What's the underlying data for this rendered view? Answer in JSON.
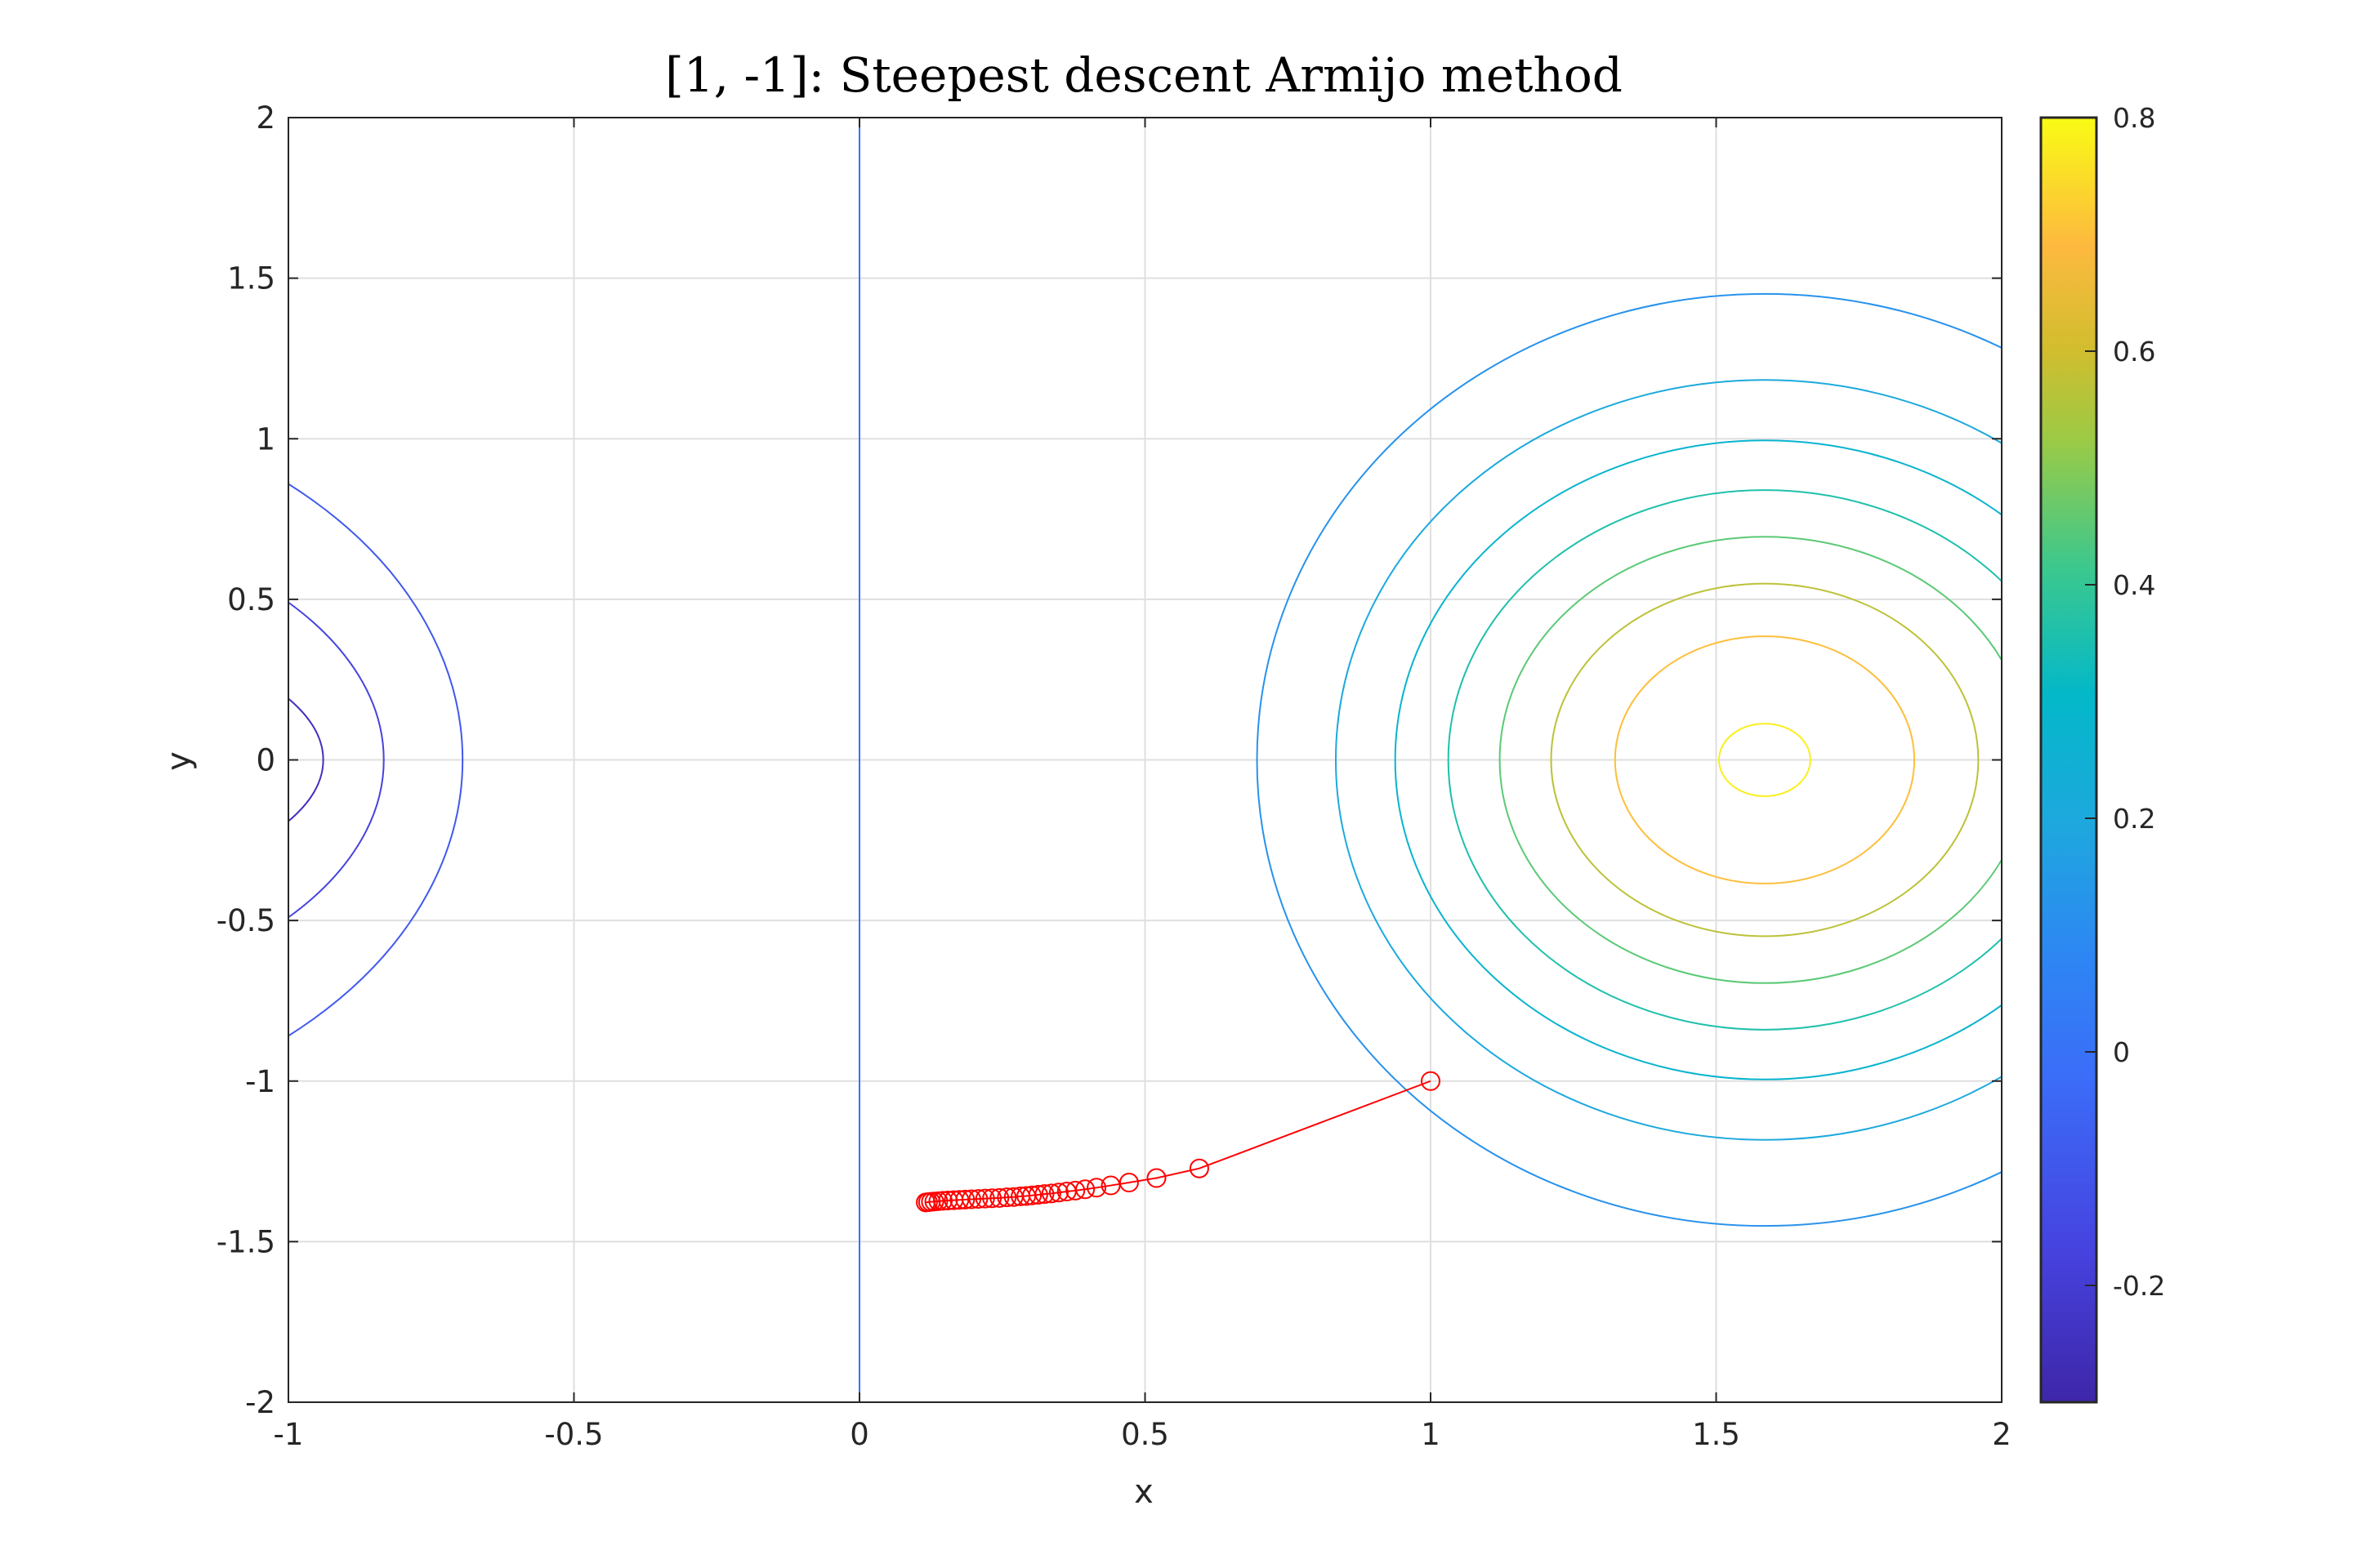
{
  "chart_data": {
    "type": "contour",
    "title": "[1, -1]: Steepest descent Armijo method",
    "xlabel": "x",
    "ylabel": "y",
    "xlim": [
      -1,
      2
    ],
    "ylim": [
      -2,
      2
    ],
    "grid": true,
    "xticks": [
      "-1",
      "-0.5",
      "0",
      "0.5",
      "1",
      "1.5",
      "2"
    ],
    "yticks": [
      "-2",
      "-1.5",
      "-1",
      "-0.5",
      "0",
      "0.5",
      "1",
      "1.5",
      "2"
    ],
    "colorbar": {
      "range": [
        -0.3,
        0.8
      ],
      "ticks": [
        "-0.2",
        "0",
        "0.2",
        "0.4",
        "0.6",
        "0.8"
      ],
      "colormap": "parula"
    },
    "contours": [
      {
        "level": -0.25,
        "center": [
          -1.585,
          0
        ],
        "rx": 0.646,
        "ry": 0.45
      },
      {
        "level": -0.17,
        "center": [
          -1.585,
          0
        ],
        "rx": 0.752,
        "ry": 0.78
      },
      {
        "level": -0.09,
        "center": [
          -1.585,
          0
        ],
        "rx": 0.89,
        "ry": 1.14
      },
      {
        "level": 0.0,
        "vertical_x": 0
      },
      {
        "level": 0.12,
        "center": [
          1.585,
          0
        ],
        "rx": 0.889,
        "ry": 1.451
      },
      {
        "level": 0.2,
        "center": [
          1.585,
          0
        ],
        "rx": 0.751,
        "ry": 1.183
      },
      {
        "level": 0.28,
        "center": [
          1.585,
          0
        ],
        "rx": 0.647,
        "ry": 0.995
      },
      {
        "level": 0.36,
        "center": [
          1.585,
          0
        ],
        "rx": 0.554,
        "ry": 0.84
      },
      {
        "level": 0.45,
        "center": [
          1.585,
          0
        ],
        "rx": 0.464,
        "ry": 0.695
      },
      {
        "level": 0.57,
        "center": [
          1.585,
          0
        ],
        "rx": 0.374,
        "ry": 0.549
      },
      {
        "level": 0.7,
        "center": [
          1.585,
          0
        ],
        "rx": 0.262,
        "ry": 0.385
      },
      {
        "level": 0.78,
        "center": [
          1.585,
          0
        ],
        "rx": 0.08,
        "ry": 0.113
      }
    ],
    "trajectory": {
      "color": "#ff0000",
      "marker": "circle",
      "x": [
        1,
        0.595,
        0.52,
        0.472,
        0.44,
        0.415,
        0.395,
        0.378,
        0.363,
        0.349,
        0.336,
        0.324,
        0.313,
        0.302,
        0.292,
        0.282,
        0.27,
        0.258,
        0.245,
        0.232,
        0.22,
        0.208,
        0.196,
        0.185,
        0.175,
        0.165,
        0.155,
        0.146,
        0.138,
        0.131,
        0.125,
        0.12,
        0.116
      ],
      "y": [
        -1,
        -1.272,
        -1.302,
        -1.316,
        -1.325,
        -1.332,
        -1.337,
        -1.341,
        -1.344,
        -1.347,
        -1.35,
        -1.352,
        -1.354,
        -1.356,
        -1.358,
        -1.359,
        -1.361,
        -1.362,
        -1.364,
        -1.365,
        -1.366,
        -1.367,
        -1.368,
        -1.369,
        -1.37,
        -1.371,
        -1.372,
        -1.373,
        -1.374,
        -1.375,
        -1.376,
        -1.377,
        -1.378
      ]
    }
  }
}
